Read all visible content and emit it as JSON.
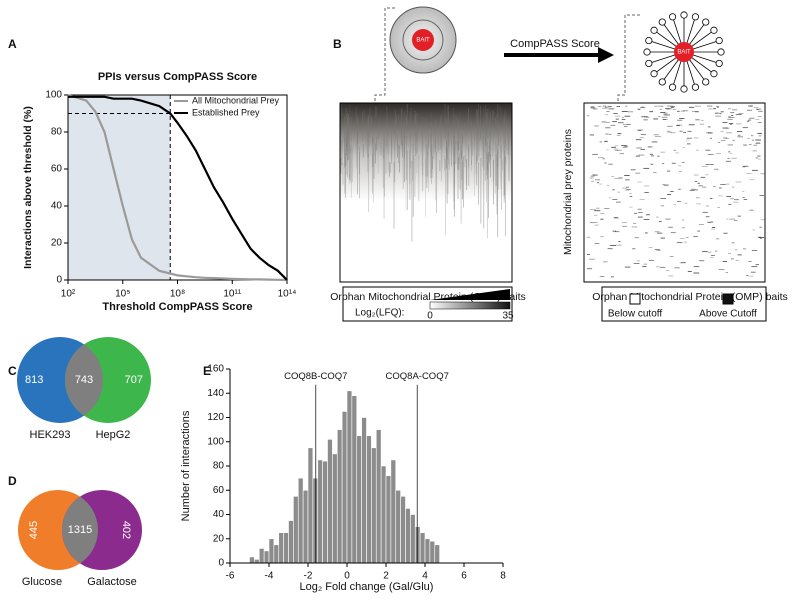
{
  "panel_labels": [
    "A",
    "B",
    "C",
    "D",
    "E"
  ],
  "diagram": {
    "arrow_label": "CompPASS Score",
    "bait_label": "BAIT",
    "bait_label_2": "BAIT",
    "left_xlabel": "Orphan Mitochondrial Protein (OMP) baits",
    "right_xlabel": "Orphan Mitochondrial Protein (OMP) baits",
    "right_ylabel": "Mitochondrial prey proteins",
    "colorbar": {
      "label": "Log₂(LFQ):",
      "min": 0,
      "max": 35
    },
    "legend": [
      "Below cutoff",
      "Above Cutoff"
    ]
  },
  "chart_data": [
    {
      "type": "line",
      "title": "PPIs versus CompPASS Score",
      "xlabel": "Threshold CompPASS Score",
      "ylabel": "Interactions above threshold (%)",
      "log_x": true,
      "xlim": [
        100,
        100000000000000.0
      ],
      "ylim": [
        0,
        100
      ],
      "xticks": [
        {
          "value": 100,
          "label": "10²"
        },
        {
          "value": 100000,
          "label": "10⁵"
        },
        {
          "value": 100000000,
          "label": "10⁸"
        },
        {
          "value": 100000000000,
          "label": "10¹¹"
        },
        {
          "value": 100000000000000.0,
          "label": "10¹⁴"
        }
      ],
      "yticks": [
        0,
        20,
        40,
        60,
        80,
        100
      ],
      "threshold": {
        "x": 40000000,
        "y": 90
      },
      "legend": "upper right",
      "x": [
        100,
        1000,
        3162,
        10000,
        31623,
        100000,
        316228,
        1000000,
        10000000,
        40000000,
        100000000,
        316227766,
        1000000000,
        3162277660,
        10000000000,
        31622776600,
        100000000000,
        316227766000,
        1000000000000,
        3162277660000,
        10000000000000,
        31622776600000,
        100000000000000.0
      ],
      "series": [
        {
          "name": "All Mitochondrial Prey",
          "color": "#9a9a9a",
          "values": [
            100,
            97,
            91,
            80,
            60,
            40,
            22,
            12,
            5,
            3.5,
            2.5,
            2,
            1.5,
            1.2,
            1,
            0.8,
            0.6,
            0.5,
            0.4,
            0.3,
            0.2,
            0.1,
            0
          ]
        },
        {
          "name": "Established Prey",
          "color": "#000000",
          "values": [
            99,
            99,
            99,
            99,
            98,
            98,
            98,
            97,
            94,
            90,
            85,
            78,
            70,
            60,
            50,
            42,
            33,
            25,
            17,
            12,
            8,
            5,
            0
          ]
        }
      ]
    },
    {
      "type": "venn",
      "sets": [
        "HEK293",
        "HepG2"
      ],
      "colors": [
        "#2a74bd",
        "#3db74c"
      ],
      "overlap_color": "#7f7f7f",
      "values": [
        813,
        743,
        707
      ]
    },
    {
      "type": "venn",
      "sets": [
        "Glucose",
        "Galactose"
      ],
      "colors": [
        "#f07d2a",
        "#8b2b8d"
      ],
      "overlap_color": "#7f7f7f",
      "values": [
        445,
        1315,
        402
      ]
    },
    {
      "type": "histogram",
      "xlabel": "Log₂ Fold change (Gal/Glu)",
      "ylabel": "Number of interactions",
      "color": "#8c8c8c",
      "xlim": [
        -6,
        8
      ],
      "ylim": [
        0,
        160
      ],
      "xticks": [
        -6,
        -4,
        -2,
        0,
        2,
        4,
        6,
        8
      ],
      "yticks": [
        0,
        20,
        40,
        60,
        80,
        100,
        120,
        140,
        160
      ],
      "bins": [
        -5,
        -4.75,
        -4.5,
        -4.25,
        -4,
        -3.75,
        -3.5,
        -3.25,
        -3,
        -2.75,
        -2.5,
        -2.25,
        -2,
        -1.75,
        -1.5,
        -1.25,
        -1,
        -0.75,
        -0.5,
        -0.25,
        0,
        0.25,
        0.5,
        0.75,
        1,
        1.25,
        1.5,
        1.75,
        2,
        2.25,
        2.5,
        2.75,
        3,
        3.25,
        3.5,
        3.75,
        4,
        4.25,
        4.5,
        4.75
      ],
      "values": [
        5,
        3,
        12,
        10,
        20,
        15,
        25,
        25,
        35,
        55,
        70,
        60,
        95,
        70,
        85,
        84,
        102,
        90,
        110,
        125,
        142,
        138,
        105,
        120,
        105,
        95,
        110,
        80,
        72,
        85,
        60,
        55,
        45,
        40,
        30,
        25,
        20,
        18,
        15
      ],
      "annotations": [
        {
          "label": "COQ8B-COQ7",
          "x": -1.6
        },
        {
          "label": "COQ8A-COQ7",
          "x": 3.6
        }
      ]
    }
  ]
}
